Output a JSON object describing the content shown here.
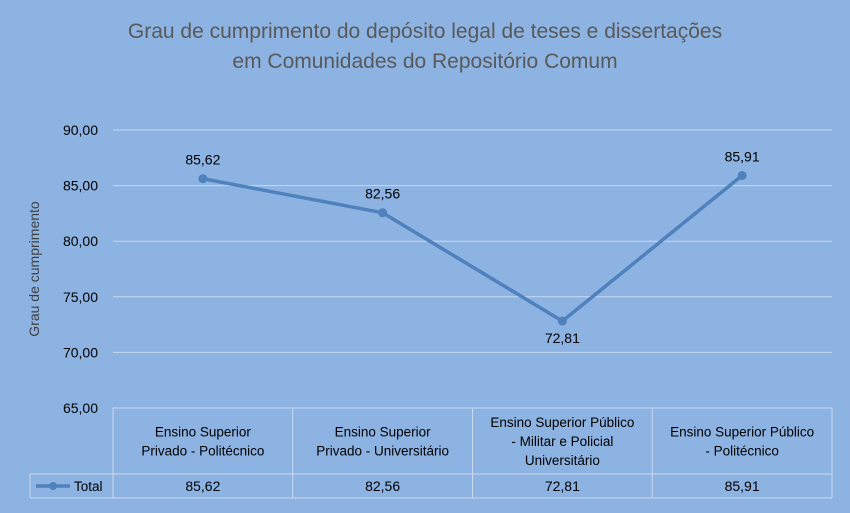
{
  "chart_data": {
    "type": "line",
    "title_line1": "Grau de cumprimento do depósito legal de teses e dissertações",
    "title_line2": "em Comunidades do Repositório Comum",
    "ylabel": "Grau de cumprimento",
    "xlabel": "",
    "ylim": [
      65,
      90
    ],
    "yticks": [
      "90,00",
      "85,00",
      "80,00",
      "75,00",
      "70,00",
      "65,00"
    ],
    "ytick_values": [
      90,
      85,
      80,
      75,
      70,
      65
    ],
    "categories": [
      [
        "Ensino Superior",
        "Privado - Politécnico"
      ],
      [
        "Ensino Superior",
        "Privado - Universitário"
      ],
      [
        "Ensino Superior Público",
        "- Militar e Policial",
        "Universitário"
      ],
      [
        "Ensino Superior Público",
        "- Politécnico"
      ]
    ],
    "series": [
      {
        "name": "Total",
        "values": [
          85.62,
          82.56,
          72.81,
          85.91
        ],
        "labels": [
          "85,62",
          "82,56",
          "72,81",
          "85,91"
        ],
        "color": "#4f81bd"
      }
    ],
    "grid": true,
    "legend": "data-table-left"
  },
  "colors": {
    "background": "#8db3e2",
    "title": "#595959",
    "text": "#000000",
    "grid": "#c9d9ef",
    "line": "#4f81bd"
  }
}
